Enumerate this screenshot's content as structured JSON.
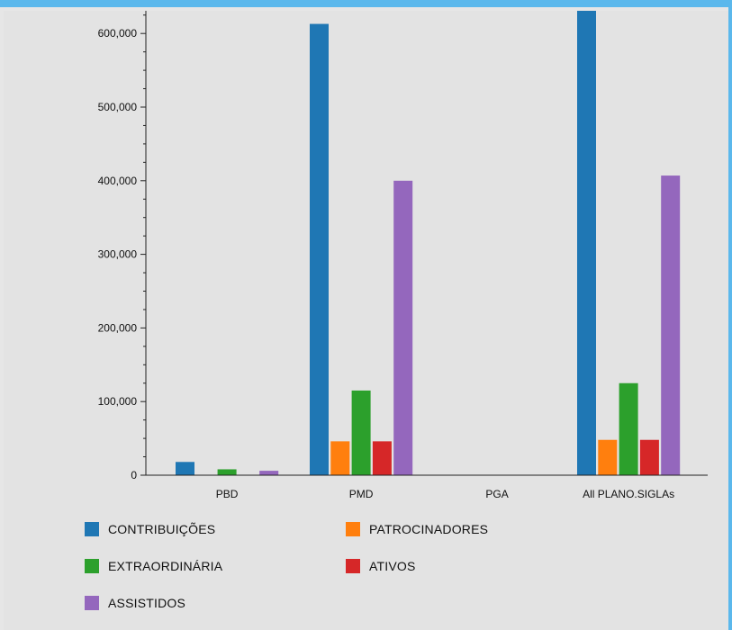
{
  "chart_data": {
    "type": "bar",
    "categories": [
      "PBD",
      "PMD",
      "PGA",
      "All PLANO.SIGLAs"
    ],
    "series": [
      {
        "name": "CONTRIBUIÇÕES",
        "color": "#1f77b4",
        "values": [
          18000,
          613000,
          0,
          636000
        ]
      },
      {
        "name": "PATROCINADORES",
        "color": "#ff7f0e",
        "values": [
          0,
          46000,
          0,
          48000
        ]
      },
      {
        "name": "EXTRAORDINÁRIA",
        "color": "#2ca02c",
        "values": [
          8000,
          115000,
          0,
          125000
        ]
      },
      {
        "name": "ATIVOS",
        "color": "#d62728",
        "values": [
          0,
          46000,
          0,
          48000
        ]
      },
      {
        "name": "ASSISTIDOS",
        "color": "#9467bd",
        "values": [
          6000,
          400000,
          0,
          407000
        ]
      }
    ],
    "yticks": [
      0,
      100000,
      200000,
      300000,
      400000,
      500000,
      600000
    ],
    "ytick_labels": [
      "0",
      "100,000",
      "200,000",
      "300,000",
      "400,000",
      "500,000",
      "600,000"
    ],
    "ylim": [
      0,
      620000
    ],
    "legend_position": "bottom",
    "grid": false
  }
}
